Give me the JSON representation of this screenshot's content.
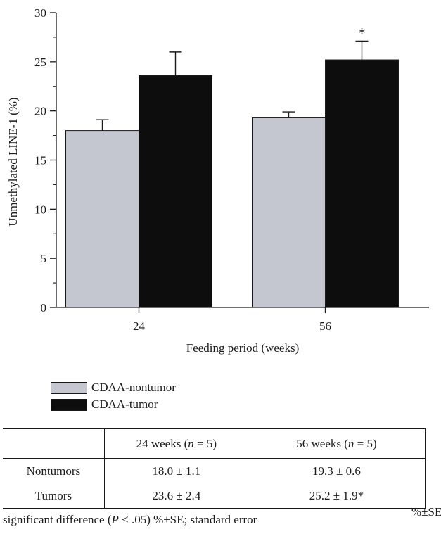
{
  "chart_data": {
    "type": "bar",
    "categories": [
      "24",
      "56"
    ],
    "series": [
      {
        "name": "CDAA-nontumor",
        "values": [
          18.0,
          19.3
        ],
        "errors": [
          1.1,
          0.6
        ],
        "color": "#c4c7cf"
      },
      {
        "name": "CDAA-tumor",
        "values": [
          23.6,
          25.2
        ],
        "errors": [
          2.4,
          1.9
        ],
        "color": "#0d0d0d"
      }
    ],
    "annotations": [
      {
        "category": "56",
        "series": "CDAA-tumor",
        "text": "*"
      }
    ],
    "xlabel": "Feeding period (weeks)",
    "ylabel": "Unmethylated LINE-1 (%)",
    "ylim": [
      0,
      30
    ],
    "yticks": [
      0,
      5,
      10,
      15,
      20,
      25,
      30
    ],
    "legend_position": "bottom-left"
  },
  "table": {
    "header": [
      "",
      "24 weeks (n = 5)",
      "56 weeks (n = 5)"
    ],
    "rows": [
      [
        "Nontumors",
        "18.0 ± 1.1",
        "19.3 ± 0.6"
      ],
      [
        "Tumors",
        "23.6 ± 2.4",
        "25.2 ± 1.9*"
      ]
    ]
  },
  "footnote": "significant difference (P < .05) %±SE; standard error",
  "footnote_right": "%±SE"
}
